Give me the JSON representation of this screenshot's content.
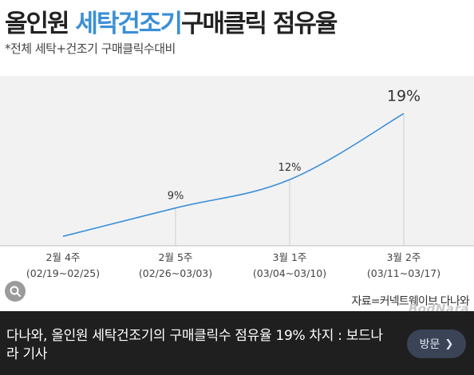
{
  "chart_data": {
    "type": "line",
    "title_parts": [
      "올인원",
      "세탁건조기",
      "구매클릭 점유율"
    ],
    "subtitle": "*전체 세탁+건조기 구매클릭수대비",
    "categories": [
      [
        "2월 4주",
        "(02/19~02/25)"
      ],
      [
        "2월 5주",
        "(02/26~03/03)"
      ],
      [
        "3월 1주",
        "(03/04~03/10)"
      ],
      [
        "3월 2주",
        "(03/11~03/17)"
      ]
    ],
    "series": [
      {
        "values": [
          6,
          9,
          12,
          19
        ],
        "data_labels": [
          "",
          "9%",
          "12%",
          "19%"
        ]
      }
    ],
    "ylim": [
      5,
      23
    ],
    "xlabel": "",
    "ylabel": "",
    "source": "자료=커넥트웨이브 다나와",
    "watermark": "BodNara",
    "colors": {
      "title_accent": "#3b8fd6",
      "line": "#3a8fd8",
      "grid": "#cfcfcf"
    }
  },
  "result_bar": {
    "title": "다나와, 올인원 세탁건조기의 구매클릭수 점유율 19% 차지 : 보드나라 기사",
    "visit_label": "방문",
    "visit_icon": "chevron-right-icon",
    "lens_icon": "lens-search-icon"
  }
}
